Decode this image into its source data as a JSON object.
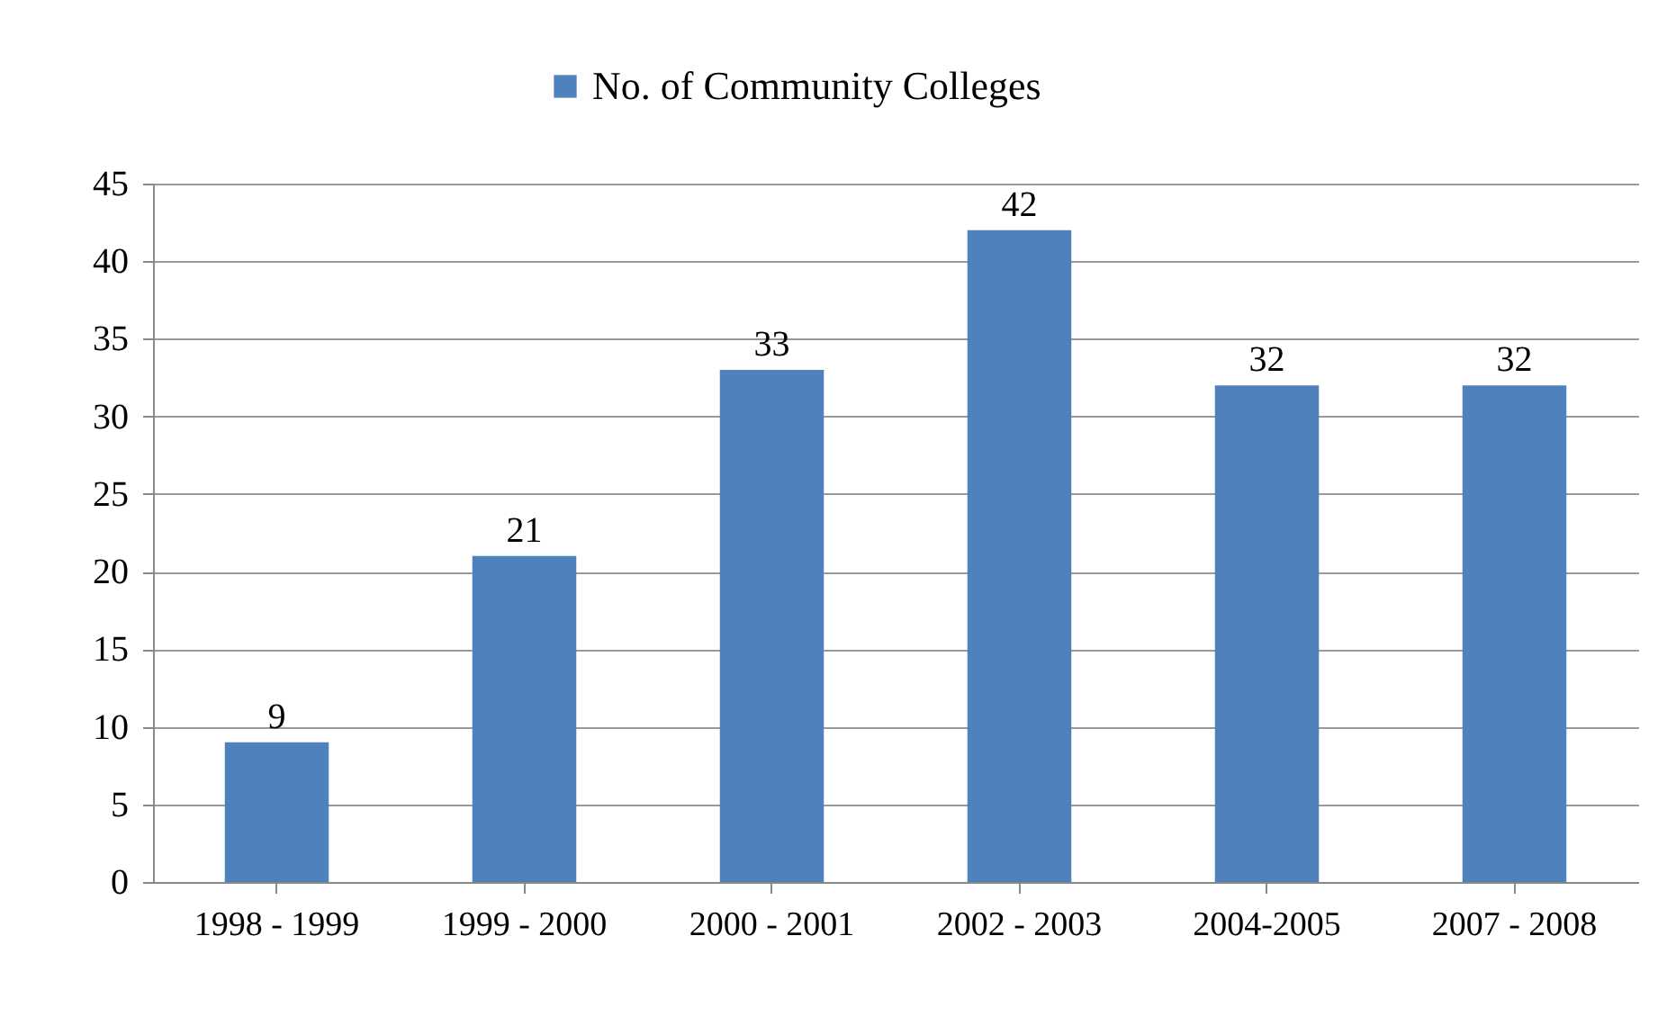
{
  "chart_data": {
    "type": "bar",
    "categories": [
      "1998 - 1999",
      "1999 - 2000",
      "2000 - 2001",
      "2002 - 2003",
      "2004-2005",
      "2007 - 2008"
    ],
    "series": [
      {
        "name": "No. of Community Colleges",
        "color": "#4f81bd",
        "values": [
          9,
          21,
          33,
          42,
          32,
          32
        ]
      }
    ],
    "ylim": [
      0,
      45
    ],
    "yticks": [
      0,
      5,
      10,
      15,
      20,
      25,
      30,
      35,
      40,
      45
    ],
    "grid": "y",
    "legend": "top",
    "data_labels": true
  }
}
